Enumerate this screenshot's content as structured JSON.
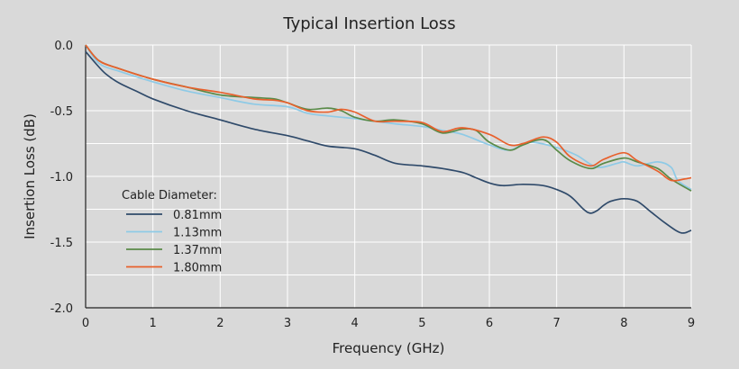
{
  "chart_data": {
    "type": "line",
    "title": "Typical Insertion Loss",
    "xlabel": "Frequency (GHz)",
    "ylabel": "Insertion Loss (dB)",
    "xlim": [
      0,
      9
    ],
    "ylim": [
      -2.0,
      0.0
    ],
    "xticks": [
      "0",
      "1",
      "2",
      "3",
      "4",
      "5",
      "6",
      "7",
      "8",
      "9"
    ],
    "yticks": [
      "0.0",
      "-0.5",
      "-1.0",
      "-1.5",
      "-2.0"
    ],
    "grid": true,
    "legend_title": "Cable Diameter:",
    "legend_position": "lower-left",
    "series": [
      {
        "name": "0.81mm",
        "color": "#2f4a6a",
        "x": [
          0,
          0.15,
          0.3,
          0.5,
          0.75,
          1.0,
          1.5,
          2.0,
          2.5,
          3.0,
          3.3,
          3.6,
          4.0,
          4.3,
          4.6,
          5.0,
          5.3,
          5.6,
          5.8,
          6.0,
          6.2,
          6.5,
          6.8,
          7.0,
          7.2,
          7.4,
          7.5,
          7.6,
          7.7,
          7.8,
          8.0,
          8.2,
          8.4,
          8.6,
          8.8,
          8.9,
          9.0
        ],
        "y": [
          -0.05,
          -0.14,
          -0.22,
          -0.29,
          -0.35,
          -0.41,
          -0.5,
          -0.57,
          -0.64,
          -0.69,
          -0.73,
          -0.77,
          -0.79,
          -0.84,
          -0.9,
          -0.92,
          -0.94,
          -0.97,
          -1.01,
          -1.05,
          -1.07,
          -1.06,
          -1.07,
          -1.1,
          -1.15,
          -1.25,
          -1.28,
          -1.26,
          -1.22,
          -1.19,
          -1.17,
          -1.19,
          -1.27,
          -1.35,
          -1.42,
          -1.43,
          -1.41
        ]
      },
      {
        "name": "1.13mm",
        "color": "#8ecae6",
        "x": [
          0,
          0.2,
          0.5,
          1.0,
          1.5,
          2.0,
          2.5,
          3.0,
          3.3,
          3.6,
          4.0,
          4.3,
          4.6,
          5.0,
          5.3,
          5.6,
          6.0,
          6.3,
          6.6,
          7.0,
          7.3,
          7.6,
          7.9,
          8.0,
          8.2,
          8.5,
          8.7,
          8.8,
          9.0
        ],
        "y": [
          0.0,
          -0.14,
          -0.2,
          -0.28,
          -0.35,
          -0.4,
          -0.45,
          -0.47,
          -0.52,
          -0.54,
          -0.56,
          -0.58,
          -0.6,
          -0.62,
          -0.65,
          -0.68,
          -0.76,
          -0.8,
          -0.74,
          -0.78,
          -0.84,
          -0.93,
          -0.9,
          -0.89,
          -0.92,
          -0.89,
          -0.93,
          -1.03,
          -1.1
        ]
      },
      {
        "name": "1.37mm",
        "color": "#5a8a48",
        "x": [
          0,
          0.2,
          0.5,
          1.0,
          1.5,
          2.0,
          2.5,
          2.8,
          3.0,
          3.3,
          3.6,
          3.8,
          4.0,
          4.3,
          4.6,
          5.0,
          5.3,
          5.6,
          5.8,
          6.0,
          6.3,
          6.5,
          6.8,
          7.0,
          7.2,
          7.5,
          7.7,
          8.0,
          8.2,
          8.5,
          8.7,
          9.0
        ],
        "y": [
          0.0,
          -0.12,
          -0.18,
          -0.26,
          -0.32,
          -0.38,
          -0.4,
          -0.41,
          -0.44,
          -0.49,
          -0.48,
          -0.5,
          -0.55,
          -0.58,
          -0.57,
          -0.6,
          -0.67,
          -0.64,
          -0.65,
          -0.74,
          -0.8,
          -0.76,
          -0.72,
          -0.8,
          -0.88,
          -0.94,
          -0.9,
          -0.86,
          -0.89,
          -0.94,
          -1.02,
          -1.11
        ]
      },
      {
        "name": "1.80mm",
        "color": "#e8602c",
        "x": [
          0,
          0.2,
          0.5,
          1.0,
          1.5,
          2.0,
          2.5,
          2.8,
          3.0,
          3.3,
          3.6,
          3.8,
          4.0,
          4.3,
          4.6,
          5.0,
          5.3,
          5.6,
          6.0,
          6.3,
          6.5,
          6.8,
          7.0,
          7.2,
          7.5,
          7.7,
          8.0,
          8.2,
          8.5,
          8.7,
          8.9,
          9.0
        ],
        "y": [
          0.0,
          -0.12,
          -0.18,
          -0.26,
          -0.32,
          -0.36,
          -0.41,
          -0.42,
          -0.44,
          -0.5,
          -0.51,
          -0.49,
          -0.51,
          -0.58,
          -0.58,
          -0.59,
          -0.66,
          -0.63,
          -0.68,
          -0.76,
          -0.75,
          -0.7,
          -0.74,
          -0.85,
          -0.92,
          -0.87,
          -0.82,
          -0.88,
          -0.96,
          -1.03,
          -1.02,
          -1.01
        ]
      }
    ]
  }
}
